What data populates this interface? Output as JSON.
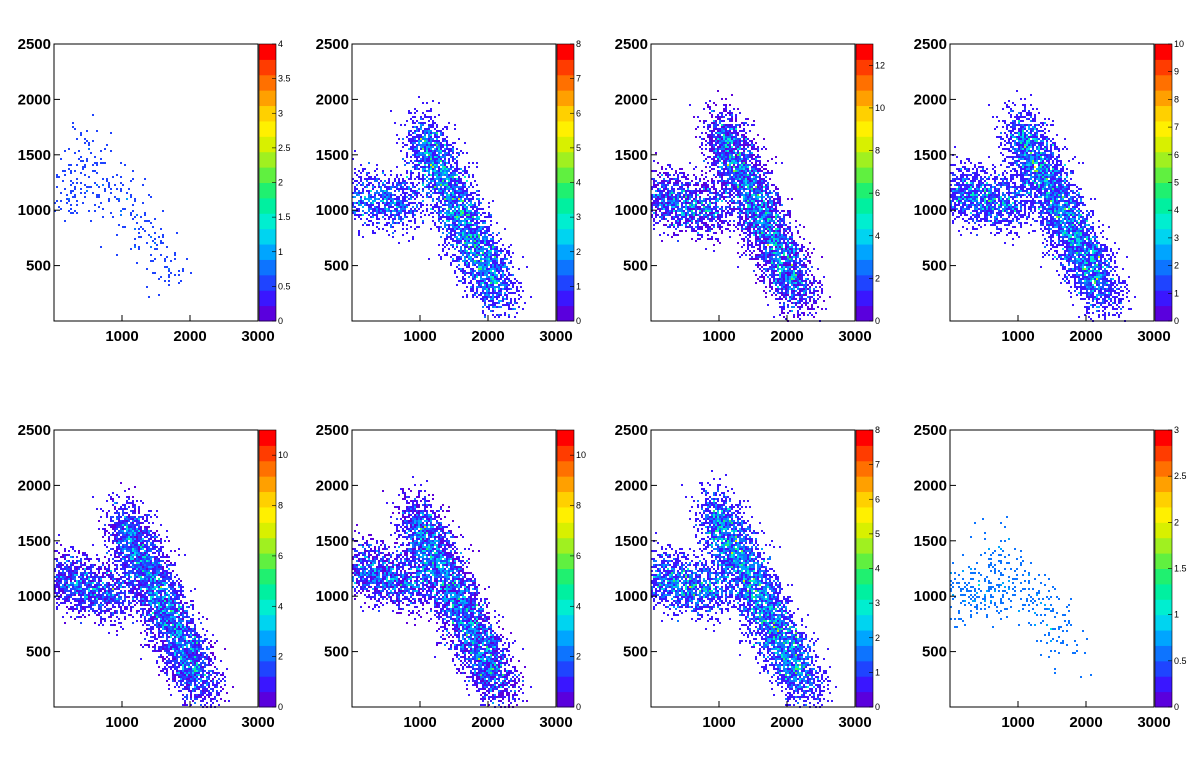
{
  "chart_data": [
    {
      "type": "heatmap",
      "title": "",
      "xlabel": "",
      "ylabel": "",
      "xlim": [
        0,
        3000
      ],
      "ylim": [
        0,
        2500
      ],
      "x_ticks": [
        1000,
        2000,
        3000
      ],
      "y_ticks": [
        500,
        1000,
        1500,
        2000,
        2500
      ],
      "z_range": [
        0,
        4
      ],
      "z_ticks": [
        "0",
        "0.5",
        "1",
        "1.5",
        "2",
        "2.5",
        "3",
        "3.5",
        "4"
      ],
      "colormap": "rainbow",
      "n_points": 300,
      "peak_count": 1,
      "branches": [
        {
          "x_center": [
            0,
            600
          ],
          "y_center": [
            1150,
            1100
          ],
          "weight": 0.3
        },
        {
          "x_center": [
            400,
            1800
          ],
          "y_center": [
            1600,
            400
          ],
          "weight": 0.7
        }
      ]
    },
    {
      "type": "heatmap",
      "title": "",
      "xlabel": "",
      "ylabel": "",
      "xlim": [
        0,
        3000
      ],
      "ylim": [
        0,
        2500
      ],
      "x_ticks": [
        1000,
        2000,
        3000
      ],
      "y_ticks": [
        500,
        1000,
        1500,
        2000,
        2500
      ],
      "z_range": [
        0,
        8
      ],
      "z_ticks": [
        "0",
        "1",
        "2",
        "3",
        "4",
        "5",
        "6",
        "7",
        "8"
      ],
      "colormap": "rainbow",
      "n_points": 4000,
      "peak_count": 5,
      "branches": [
        {
          "x_center": [
            0,
            900
          ],
          "y_center": [
            1100,
            1050
          ],
          "weight": 0.2
        },
        {
          "x_center": [
            1000,
            2200
          ],
          "y_center": [
            1700,
            200
          ],
          "weight": 0.8
        }
      ]
    },
    {
      "type": "heatmap",
      "title": "",
      "xlabel": "",
      "ylabel": "",
      "xlim": [
        0,
        3000
      ],
      "ylim": [
        0,
        2500
      ],
      "x_ticks": [
        1000,
        2000,
        3000
      ],
      "y_ticks": [
        500,
        1000,
        1500,
        2000,
        2500
      ],
      "z_range": [
        0,
        13
      ],
      "z_ticks": [
        "0",
        "2",
        "4",
        "6",
        "8",
        "10",
        "12"
      ],
      "colormap": "rainbow",
      "n_points": 7500,
      "peak_count": 8,
      "branches": [
        {
          "x_center": [
            0,
            1000
          ],
          "y_center": [
            1100,
            1000
          ],
          "weight": 0.25
        },
        {
          "x_center": [
            1000,
            2200
          ],
          "y_center": [
            1750,
            200
          ],
          "weight": 0.75
        }
      ]
    },
    {
      "type": "heatmap",
      "title": "",
      "xlabel": "",
      "ylabel": "",
      "xlim": [
        0,
        3000
      ],
      "ylim": [
        0,
        2500
      ],
      "x_ticks": [
        1000,
        2000,
        3000
      ],
      "y_ticks": [
        500,
        1000,
        1500,
        2000,
        2500
      ],
      "z_range": [
        0,
        10
      ],
      "z_ticks": [
        "0",
        "1",
        "2",
        "3",
        "4",
        "5",
        "6",
        "7",
        "8",
        "9",
        "10"
      ],
      "colormap": "rainbow",
      "n_points": 8000,
      "peak_count": 7,
      "branches": [
        {
          "x_center": [
            0,
            1000
          ],
          "y_center": [
            1150,
            1050
          ],
          "weight": 0.25
        },
        {
          "x_center": [
            1000,
            2300
          ],
          "y_center": [
            1750,
            200
          ],
          "weight": 0.75
        }
      ]
    },
    {
      "type": "heatmap",
      "title": "",
      "xlabel": "",
      "ylabel": "",
      "xlim": [
        0,
        3000
      ],
      "ylim": [
        0,
        2500
      ],
      "x_ticks": [
        1000,
        2000,
        3000
      ],
      "y_ticks": [
        500,
        1000,
        1500,
        2000,
        2500
      ],
      "z_range": [
        0,
        11
      ],
      "z_ticks": [
        "0",
        "2",
        "4",
        "6",
        "8",
        "10"
      ],
      "colormap": "rainbow",
      "n_points": 8500,
      "peak_count": 7,
      "branches": [
        {
          "x_center": [
            0,
            1000
          ],
          "y_center": [
            1150,
            1000
          ],
          "weight": 0.25
        },
        {
          "x_center": [
            1000,
            2200
          ],
          "y_center": [
            1700,
            150
          ],
          "weight": 0.75
        }
      ]
    },
    {
      "type": "heatmap",
      "title": "",
      "xlabel": "",
      "ylabel": "",
      "xlim": [
        0,
        3000
      ],
      "ylim": [
        0,
        2500
      ],
      "x_ticks": [
        1000,
        2000,
        3000
      ],
      "y_ticks": [
        500,
        1000,
        1500,
        2000,
        2500
      ],
      "z_range": [
        0,
        11
      ],
      "z_ticks": [
        "0",
        "2",
        "4",
        "6",
        "8",
        "10"
      ],
      "colormap": "rainbow",
      "n_points": 8000,
      "peak_count": 7,
      "branches": [
        {
          "x_center": [
            0,
            1000
          ],
          "y_center": [
            1250,
            1100
          ],
          "weight": 0.25
        },
        {
          "x_center": [
            900,
            2200
          ],
          "y_center": [
            1750,
            150
          ],
          "weight": 0.75
        }
      ]
    },
    {
      "type": "heatmap",
      "title": "",
      "xlabel": "",
      "ylabel": "",
      "xlim": [
        0,
        3000
      ],
      "ylim": [
        0,
        2500
      ],
      "x_ticks": [
        1000,
        2000,
        3000
      ],
      "y_ticks": [
        500,
        1000,
        1500,
        2000,
        2500
      ],
      "z_range": [
        0,
        8
      ],
      "z_ticks": [
        "0",
        "1",
        "2",
        "3",
        "4",
        "5",
        "6",
        "7",
        "8"
      ],
      "colormap": "rainbow",
      "n_points": 5000,
      "peak_count": 5,
      "branches": [
        {
          "x_center": [
            0,
            1000
          ],
          "y_center": [
            1150,
            1050
          ],
          "weight": 0.25
        },
        {
          "x_center": [
            900,
            2300
          ],
          "y_center": [
            1800,
            150
          ],
          "weight": 0.75
        }
      ]
    },
    {
      "type": "heatmap",
      "title": "",
      "xlabel": "",
      "ylabel": "",
      "xlim": [
        0,
        3000
      ],
      "ylim": [
        0,
        2500
      ],
      "x_ticks": [
        1000,
        2000,
        3000
      ],
      "y_ticks": [
        500,
        1000,
        1500,
        2000,
        2500
      ],
      "z_range": [
        0,
        3
      ],
      "z_ticks": [
        "0",
        "0.5",
        "1",
        "1.5",
        "2",
        "2.5",
        "3"
      ],
      "colormap": "rainbow",
      "n_points": 400,
      "peak_count": 1,
      "branches": [
        {
          "x_center": [
            0,
            800
          ],
          "y_center": [
            1050,
            1000
          ],
          "weight": 0.5
        },
        {
          "x_center": [
            600,
            1800
          ],
          "y_center": [
            1500,
            500
          ],
          "weight": 0.5
        }
      ]
    }
  ]
}
